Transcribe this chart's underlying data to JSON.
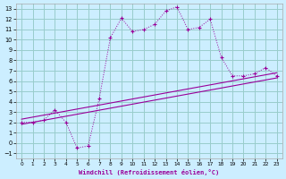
{
  "title": "",
  "xlabel": "Windchill (Refroidissement éolien,°C)",
  "bg_color": "#cceeff",
  "grid_color": "#99cccc",
  "line_color": "#990099",
  "xlim": [
    -0.5,
    23.5
  ],
  "ylim": [
    -1.5,
    13.5
  ],
  "xticks": [
    0,
    1,
    2,
    3,
    4,
    5,
    6,
    7,
    8,
    9,
    10,
    11,
    12,
    13,
    14,
    15,
    16,
    17,
    18,
    19,
    20,
    21,
    22,
    23
  ],
  "yticks": [
    -1,
    0,
    1,
    2,
    3,
    4,
    5,
    6,
    7,
    8,
    9,
    10,
    11,
    12,
    13
  ],
  "jagged_x": [
    0,
    1,
    2,
    3,
    4,
    5,
    6,
    7,
    8,
    9,
    10,
    11,
    12,
    13,
    14,
    15,
    16,
    17,
    18,
    19,
    20,
    21,
    22,
    23
  ],
  "jagged_y": [
    2.0,
    2.0,
    2.2,
    3.2,
    2.0,
    -0.5,
    -0.3,
    4.3,
    10.2,
    12.1,
    10.8,
    11.0,
    11.5,
    12.8,
    13.2,
    11.0,
    11.2,
    12.0,
    8.3,
    6.5,
    6.5,
    6.7,
    7.3,
    6.5
  ],
  "trend1_x": [
    0,
    23
  ],
  "trend1_y": [
    1.8,
    6.3
  ],
  "trend2_x": [
    0,
    23
  ],
  "trend2_y": [
    2.3,
    6.8
  ]
}
